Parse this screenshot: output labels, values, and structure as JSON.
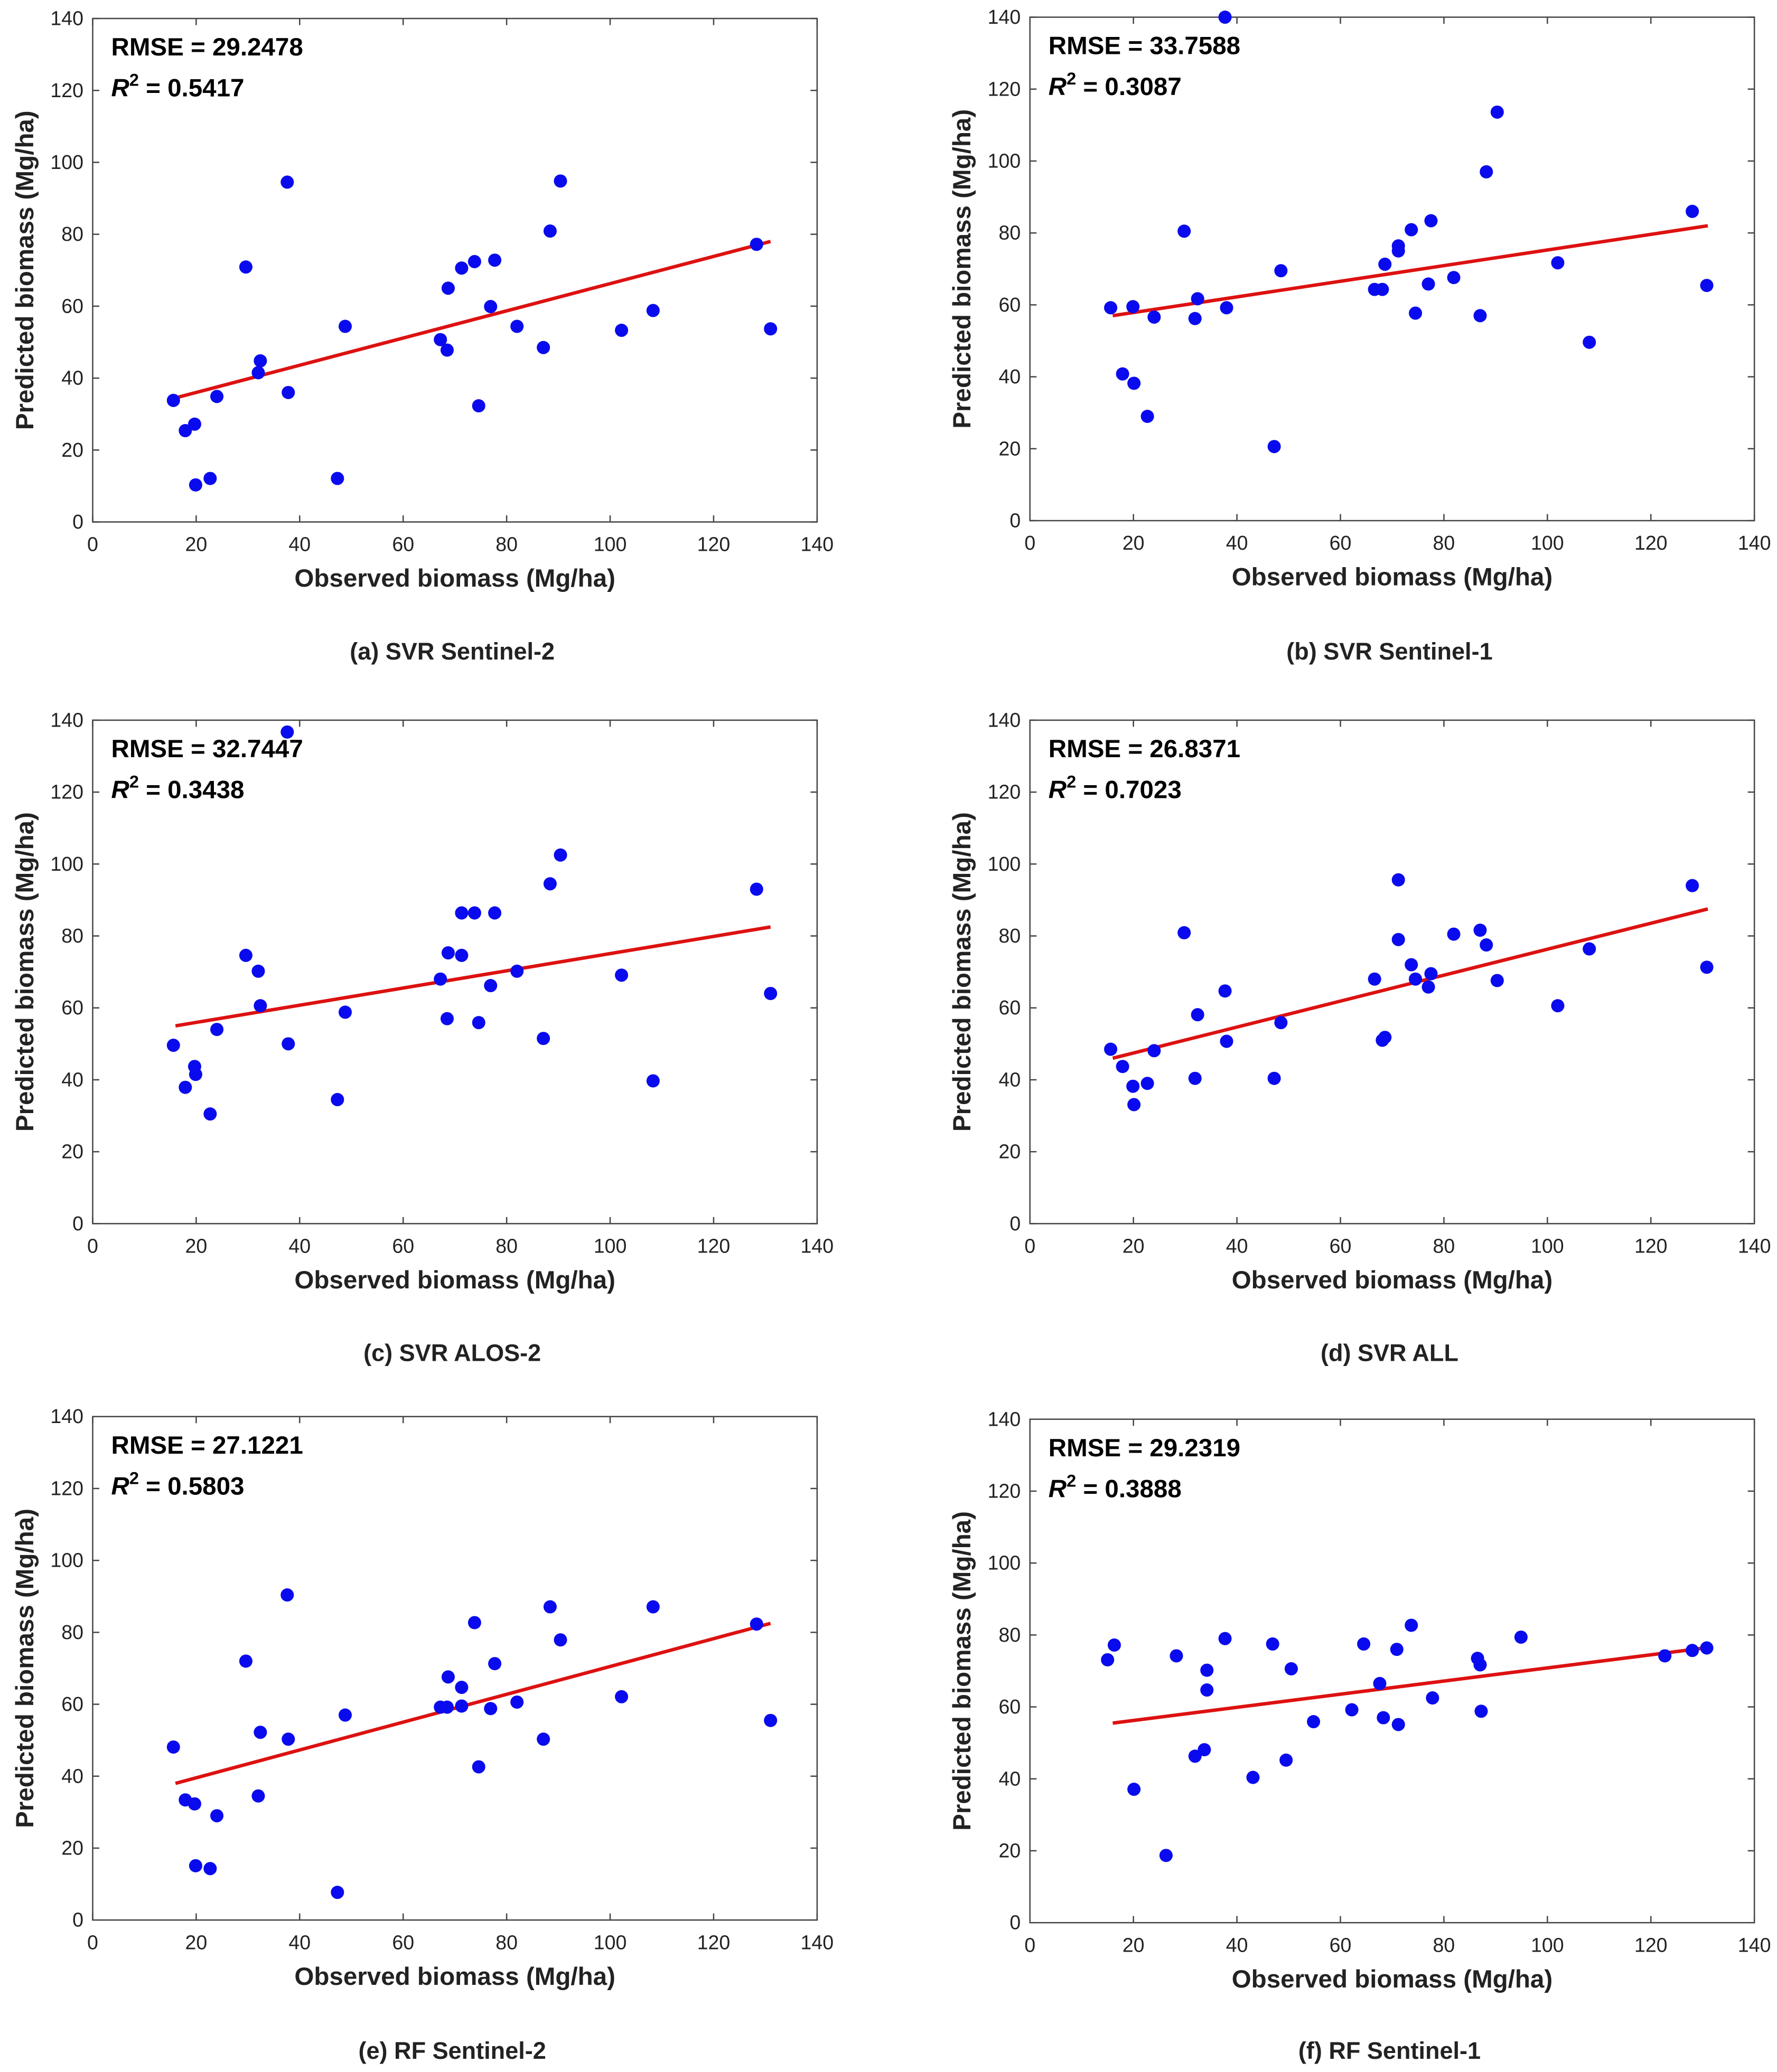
{
  "colors": {
    "points": "#0a0aee",
    "fit_line": "#dd1111",
    "axes": "#444444"
  },
  "chart_data": [
    {
      "type": "scatter",
      "caption": "(a) SVR Sentinel-2",
      "rmse_label": "RMSE = 29.2478",
      "r2_prefix": "R",
      "r2_sup": "2",
      "r2_value": " = 0.5417",
      "xlabel": "Observed biomass (Mg/ha)",
      "ylabel": "Predicted biomass (Mg/ha)",
      "xlim": [
        0,
        140
      ],
      "ylim": [
        0,
        140
      ],
      "xticks": [
        "0",
        "20",
        "40",
        "60",
        "80",
        "100",
        "120",
        "140"
      ],
      "yticks": [
        "0",
        "20",
        "40",
        "60",
        "80",
        "100",
        "120",
        "140"
      ],
      "points": [
        [
          15.6,
          33.8
        ],
        [
          17.9,
          25.4
        ],
        [
          19.7,
          27.2
        ],
        [
          19.9,
          10.3
        ],
        [
          22.7,
          12.1
        ],
        [
          24,
          34.9
        ],
        [
          29.6,
          70.9
        ],
        [
          32,
          41.5
        ],
        [
          32.4,
          44.8
        ],
        [
          37.6,
          94.5
        ],
        [
          37.8,
          36
        ],
        [
          47.3,
          12.1
        ],
        [
          48.8,
          54.4
        ],
        [
          67.2,
          50.7
        ],
        [
          68.5,
          47.8
        ],
        [
          68.7,
          65
        ],
        [
          71.3,
          70.6
        ],
        [
          73.8,
          72.4
        ],
        [
          74.6,
          32.3
        ],
        [
          77.7,
          72.8
        ],
        [
          76.9,
          59.9
        ],
        [
          82,
          54.4
        ],
        [
          87.1,
          48.5
        ],
        [
          88.4,
          80.9
        ],
        [
          90.4,
          94.8
        ],
        [
          102.2,
          53.3
        ],
        [
          108.3,
          58.8
        ],
        [
          128.3,
          77.2
        ],
        [
          131,
          53.7
        ]
      ],
      "fit_line": [
        [
          16,
          34.5
        ],
        [
          131,
          78
        ]
      ]
    },
    {
      "type": "scatter",
      "caption": "(b) SVR Sentinel-1",
      "rmse_label": "RMSE = 33.7588",
      "r2_prefix": "R",
      "r2_sup": "2",
      "r2_value": " = 0.3087",
      "xlabel": "Observed biomass (Mg/ha)",
      "ylabel": "Predicted biomass (Mg/ha)",
      "xlim": [
        0,
        140
      ],
      "ylim": [
        0,
        140
      ],
      "xticks": [
        "0",
        "20",
        "40",
        "60",
        "80",
        "100",
        "120",
        "140"
      ],
      "yticks": [
        "0",
        "20",
        "40",
        "60",
        "80",
        "100",
        "120",
        "140"
      ],
      "points": [
        [
          15.6,
          59.2
        ],
        [
          17.9,
          40.8
        ],
        [
          19.9,
          59.5
        ],
        [
          20.1,
          38.2
        ],
        [
          22.7,
          29
        ],
        [
          24,
          56.6
        ],
        [
          29.8,
          80.5
        ],
        [
          31.9,
          56.2
        ],
        [
          32.4,
          61.7
        ],
        [
          37.7,
          140
        ],
        [
          38,
          59.2
        ],
        [
          47.2,
          20.6
        ],
        [
          48.5,
          69.5
        ],
        [
          66.6,
          64.3
        ],
        [
          68.1,
          64.3
        ],
        [
          68.6,
          71.3
        ],
        [
          71.2,
          76.4
        ],
        [
          71.2,
          75
        ],
        [
          73.7,
          80.9
        ],
        [
          74.5,
          57.7
        ],
        [
          77,
          65.8
        ],
        [
          77.5,
          83.4
        ],
        [
          81.9,
          67.6
        ],
        [
          87,
          57
        ],
        [
          88.2,
          97
        ],
        [
          90.3,
          113.6
        ],
        [
          102,
          71.7
        ],
        [
          108.1,
          49.6
        ],
        [
          128,
          86
        ],
        [
          130.8,
          65.4
        ]
      ],
      "fit_line": [
        [
          16,
          57
        ],
        [
          131,
          82
        ]
      ]
    },
    {
      "type": "scatter",
      "caption": "(c) SVR ALOS-2",
      "rmse_label": "RMSE = 32.7447",
      "r2_prefix": "R",
      "r2_sup": "2",
      "r2_value": " = 0.3438",
      "xlabel": "Observed biomass (Mg/ha)",
      "ylabel": "Predicted biomass (Mg/ha)",
      "xlim": [
        0,
        140
      ],
      "ylim": [
        0,
        140
      ],
      "xticks": [
        "0",
        "20",
        "40",
        "60",
        "80",
        "100",
        "120",
        "140"
      ],
      "yticks": [
        "0",
        "20",
        "40",
        "60",
        "80",
        "100",
        "120",
        "140"
      ],
      "points": [
        [
          15.6,
          49.6
        ],
        [
          17.9,
          37.9
        ],
        [
          19.7,
          43.7
        ],
        [
          19.9,
          41.5
        ],
        [
          22.7,
          30.5
        ],
        [
          24,
          54
        ],
        [
          29.6,
          74.6
        ],
        [
          32,
          70.2
        ],
        [
          32.4,
          60.6
        ],
        [
          37.6,
          136.7
        ],
        [
          37.8,
          50
        ],
        [
          47.3,
          34.5
        ],
        [
          48.8,
          58.8
        ],
        [
          67.2,
          68
        ],
        [
          68.5,
          57
        ],
        [
          68.7,
          75.3
        ],
        [
          71.3,
          86.4
        ],
        [
          71.3,
          74.6
        ],
        [
          73.8,
          86.4
        ],
        [
          74.6,
          55.9
        ],
        [
          77.7,
          86.4
        ],
        [
          76.9,
          66.2
        ],
        [
          82,
          70.2
        ],
        [
          87.1,
          51.5
        ],
        [
          88.4,
          94.5
        ],
        [
          90.4,
          102.5
        ],
        [
          102.2,
          69.1
        ],
        [
          108.3,
          39.7
        ],
        [
          128.3,
          93
        ],
        [
          131,
          64
        ]
      ],
      "fit_line": [
        [
          16,
          55
        ],
        [
          131,
          82.5
        ]
      ]
    },
    {
      "type": "scatter",
      "caption": "(d) SVR ALL",
      "rmse_label": "RMSE = 26.8371",
      "r2_prefix": "R",
      "r2_sup": "2",
      "r2_value": " = 0.7023",
      "xlabel": "Observed biomass (Mg/ha)",
      "ylabel": "Predicted biomass (Mg/ha)",
      "xlim": [
        0,
        140
      ],
      "ylim": [
        0,
        140
      ],
      "xticks": [
        "0",
        "20",
        "40",
        "60",
        "80",
        "100",
        "120",
        "140"
      ],
      "yticks": [
        "0",
        "20",
        "40",
        "60",
        "80",
        "100",
        "120",
        "140"
      ],
      "points": [
        [
          15.6,
          48.5
        ],
        [
          17.9,
          43.7
        ],
        [
          19.9,
          38.2
        ],
        [
          20.1,
          33.1
        ],
        [
          22.7,
          39
        ],
        [
          24,
          48.1
        ],
        [
          29.8,
          80.9
        ],
        [
          31.9,
          40.4
        ],
        [
          32.4,
          58.1
        ],
        [
          37.7,
          64.7
        ],
        [
          38,
          50.7
        ],
        [
          47.2,
          40.4
        ],
        [
          48.5,
          55.9
        ],
        [
          66.6,
          68
        ],
        [
          68.1,
          51
        ],
        [
          68.6,
          51.8
        ],
        [
          71.2,
          95.6
        ],
        [
          71.2,
          79
        ],
        [
          73.7,
          72
        ],
        [
          74.5,
          68
        ],
        [
          77,
          65.8
        ],
        [
          77.5,
          69.5
        ],
        [
          81.9,
          80.5
        ],
        [
          87,
          81.6
        ],
        [
          88.2,
          77.5
        ],
        [
          90.3,
          67.6
        ],
        [
          102,
          60.6
        ],
        [
          108.1,
          76.4
        ],
        [
          128,
          94
        ],
        [
          130.8,
          71.3
        ]
      ],
      "fit_line": [
        [
          16,
          46
        ],
        [
          131,
          87.5
        ]
      ]
    },
    {
      "type": "scatter",
      "caption": "(e) RF Sentinel-2",
      "rmse_label": "RMSE = 27.1221",
      "r2_prefix": "R",
      "r2_sup": "2",
      "r2_value": " = 0.5803",
      "xlabel": "Observed biomass (Mg/ha)",
      "ylabel": "Predicted biomass (Mg/ha)",
      "xlim": [
        0,
        140
      ],
      "ylim": [
        0,
        140
      ],
      "xticks": [
        "0",
        "20",
        "40",
        "60",
        "80",
        "100",
        "120",
        "140"
      ],
      "yticks": [
        "0",
        "20",
        "40",
        "60",
        "80",
        "100",
        "120",
        "140"
      ],
      "points": [
        [
          15.6,
          48.1
        ],
        [
          17.9,
          33.4
        ],
        [
          19.7,
          32.3
        ],
        [
          19.9,
          15.1
        ],
        [
          22.7,
          14.3
        ],
        [
          24,
          29
        ],
        [
          29.6,
          72
        ],
        [
          32,
          34.5
        ],
        [
          32.4,
          52.2
        ],
        [
          37.6,
          90.4
        ],
        [
          37.8,
          50.3
        ],
        [
          47.3,
          7.7
        ],
        [
          48.8,
          57
        ],
        [
          67.2,
          59.2
        ],
        [
          68.5,
          59.2
        ],
        [
          68.7,
          67.6
        ],
        [
          71.3,
          64.7
        ],
        [
          71.3,
          59.5
        ],
        [
          73.8,
          82.7
        ],
        [
          74.6,
          42.6
        ],
        [
          77.7,
          71.3
        ],
        [
          76.9,
          58.8
        ],
        [
          82,
          60.6
        ],
        [
          87.1,
          50.3
        ],
        [
          88.4,
          87.1
        ],
        [
          90.4,
          77.9
        ],
        [
          102.2,
          62.1
        ],
        [
          108.3,
          87.1
        ],
        [
          128.3,
          82.3
        ],
        [
          131,
          55.5
        ]
      ],
      "fit_line": [
        [
          16,
          38
        ],
        [
          131,
          82.5
        ]
      ]
    },
    {
      "type": "scatter",
      "caption": "(f) RF Sentinel-1",
      "rmse_label": "RMSE = 29.2319",
      "r2_prefix": "R",
      "r2_sup": "2",
      "r2_value": " = 0.3888",
      "xlabel": "Observed biomass (Mg/ha)",
      "ylabel": "Predicted biomass (Mg/ha)",
      "xlim": [
        0,
        140
      ],
      "ylim": [
        0,
        140
      ],
      "xticks": [
        "0",
        "20",
        "40",
        "60",
        "80",
        "100",
        "120",
        "140"
      ],
      "yticks": [
        "0",
        "20",
        "40",
        "60",
        "80",
        "100",
        "120",
        "140"
      ],
      "points": [
        [
          15,
          73.1
        ],
        [
          16.3,
          77.2
        ],
        [
          20.1,
          37.1
        ],
        [
          26.3,
          18.7
        ],
        [
          28.3,
          74.2
        ],
        [
          31.9,
          46.3
        ],
        [
          33.7,
          48.1
        ],
        [
          34.2,
          70.2
        ],
        [
          34.2,
          64.7
        ],
        [
          37.7,
          79
        ],
        [
          43.1,
          40.4
        ],
        [
          46.9,
          77.5
        ],
        [
          49.5,
          45.2
        ],
        [
          50.5,
          70.6
        ],
        [
          54.8,
          55.9
        ],
        [
          62.2,
          59.2
        ],
        [
          64.5,
          77.5
        ],
        [
          67.6,
          66.5
        ],
        [
          68.3,
          57
        ],
        [
          70.9,
          76
        ],
        [
          71.2,
          55.1
        ],
        [
          73.7,
          82.7
        ],
        [
          77.8,
          62.5
        ],
        [
          86.5,
          73.5
        ],
        [
          87,
          71.7
        ],
        [
          87.2,
          58.8
        ],
        [
          94.9,
          79.4
        ],
        [
          122.7,
          74.2
        ],
        [
          128,
          75.7
        ],
        [
          130.8,
          76.4
        ]
      ],
      "fit_line": [
        [
          16,
          55.5
        ],
        [
          131,
          76.5
        ]
      ]
    }
  ]
}
